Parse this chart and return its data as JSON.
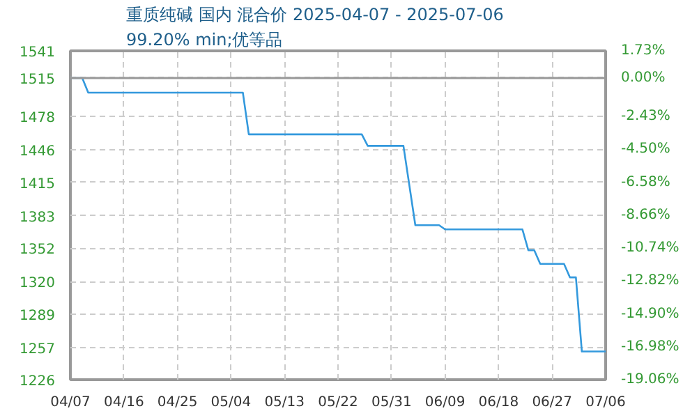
{
  "chart_data": {
    "type": "line",
    "title": "重质纯碱 国内 混合价 2025-04-07 - 2025-07-06",
    "subtitle": "99.20% min;优等品",
    "x": [
      "2025-04-07",
      "2025-04-09",
      "2025-04-10",
      "2025-05-06",
      "2025-05-07",
      "2025-05-26",
      "2025-05-27",
      "2025-06-02",
      "2025-06-04",
      "2025-06-08",
      "2025-06-09",
      "2025-06-22",
      "2025-06-23",
      "2025-06-24",
      "2025-06-25",
      "2025-06-29",
      "2025-06-30",
      "2025-07-01",
      "2025-07-02",
      "2025-07-06"
    ],
    "series": [
      {
        "color": "#3399dd",
        "values": [
          1515,
          1515,
          1501,
          1501,
          1461,
          1461,
          1450,
          1450,
          1374,
          1374,
          1370,
          1370,
          1350,
          1350,
          1337,
          1337,
          1324,
          1324,
          1253,
          1253
        ]
      }
    ],
    "xlim": [
      "2025-04-07",
      "2025-07-06"
    ],
    "xticks": [
      {
        "value": "2025-04-07",
        "label": "04/07"
      },
      {
        "value": "2025-04-16",
        "label": "04/16"
      },
      {
        "value": "2025-04-25",
        "label": "04/25"
      },
      {
        "value": "2025-05-04",
        "label": "05/04"
      },
      {
        "value": "2025-05-13",
        "label": "05/13"
      },
      {
        "value": "2025-05-22",
        "label": "05/22"
      },
      {
        "value": "2025-05-31",
        "label": "05/31"
      },
      {
        "value": "2025-06-09",
        "label": "06/09"
      },
      {
        "value": "2025-06-18",
        "label": "06/18"
      },
      {
        "value": "2025-06-27",
        "label": "06/27"
      },
      {
        "value": "2025-07-06",
        "label": "07/06"
      }
    ],
    "ylim": [
      1226,
      1541
    ],
    "yticks": [
      1226,
      1257,
      1289,
      1320,
      1352,
      1383,
      1415,
      1446,
      1478,
      1515,
      1541
    ],
    "y2lim": [
      -19.06,
      1.73
    ],
    "y2ticks": [
      {
        "value": -19.06,
        "label": "-19.06%"
      },
      {
        "value": -16.98,
        "label": "-16.98%"
      },
      {
        "value": -14.9,
        "label": "-14.90%"
      },
      {
        "value": -12.82,
        "label": "-12.82%"
      },
      {
        "value": -10.74,
        "label": "-10.74%"
      },
      {
        "value": -8.66,
        "label": "-8.66%"
      },
      {
        "value": -6.58,
        "label": "-6.58%"
      },
      {
        "value": -4.5,
        "label": "-4.50%"
      },
      {
        "value": -2.43,
        "label": "-2.43%"
      },
      {
        "value": 0,
        "label": "0.00%"
      },
      {
        "value": 1.73,
        "label": "1.73%"
      }
    ],
    "ref_lines": [
      {
        "axis": "y",
        "value": 1515,
        "color": "#999999"
      }
    ],
    "grid": true,
    "marker": "none",
    "line_style": "solid"
  }
}
